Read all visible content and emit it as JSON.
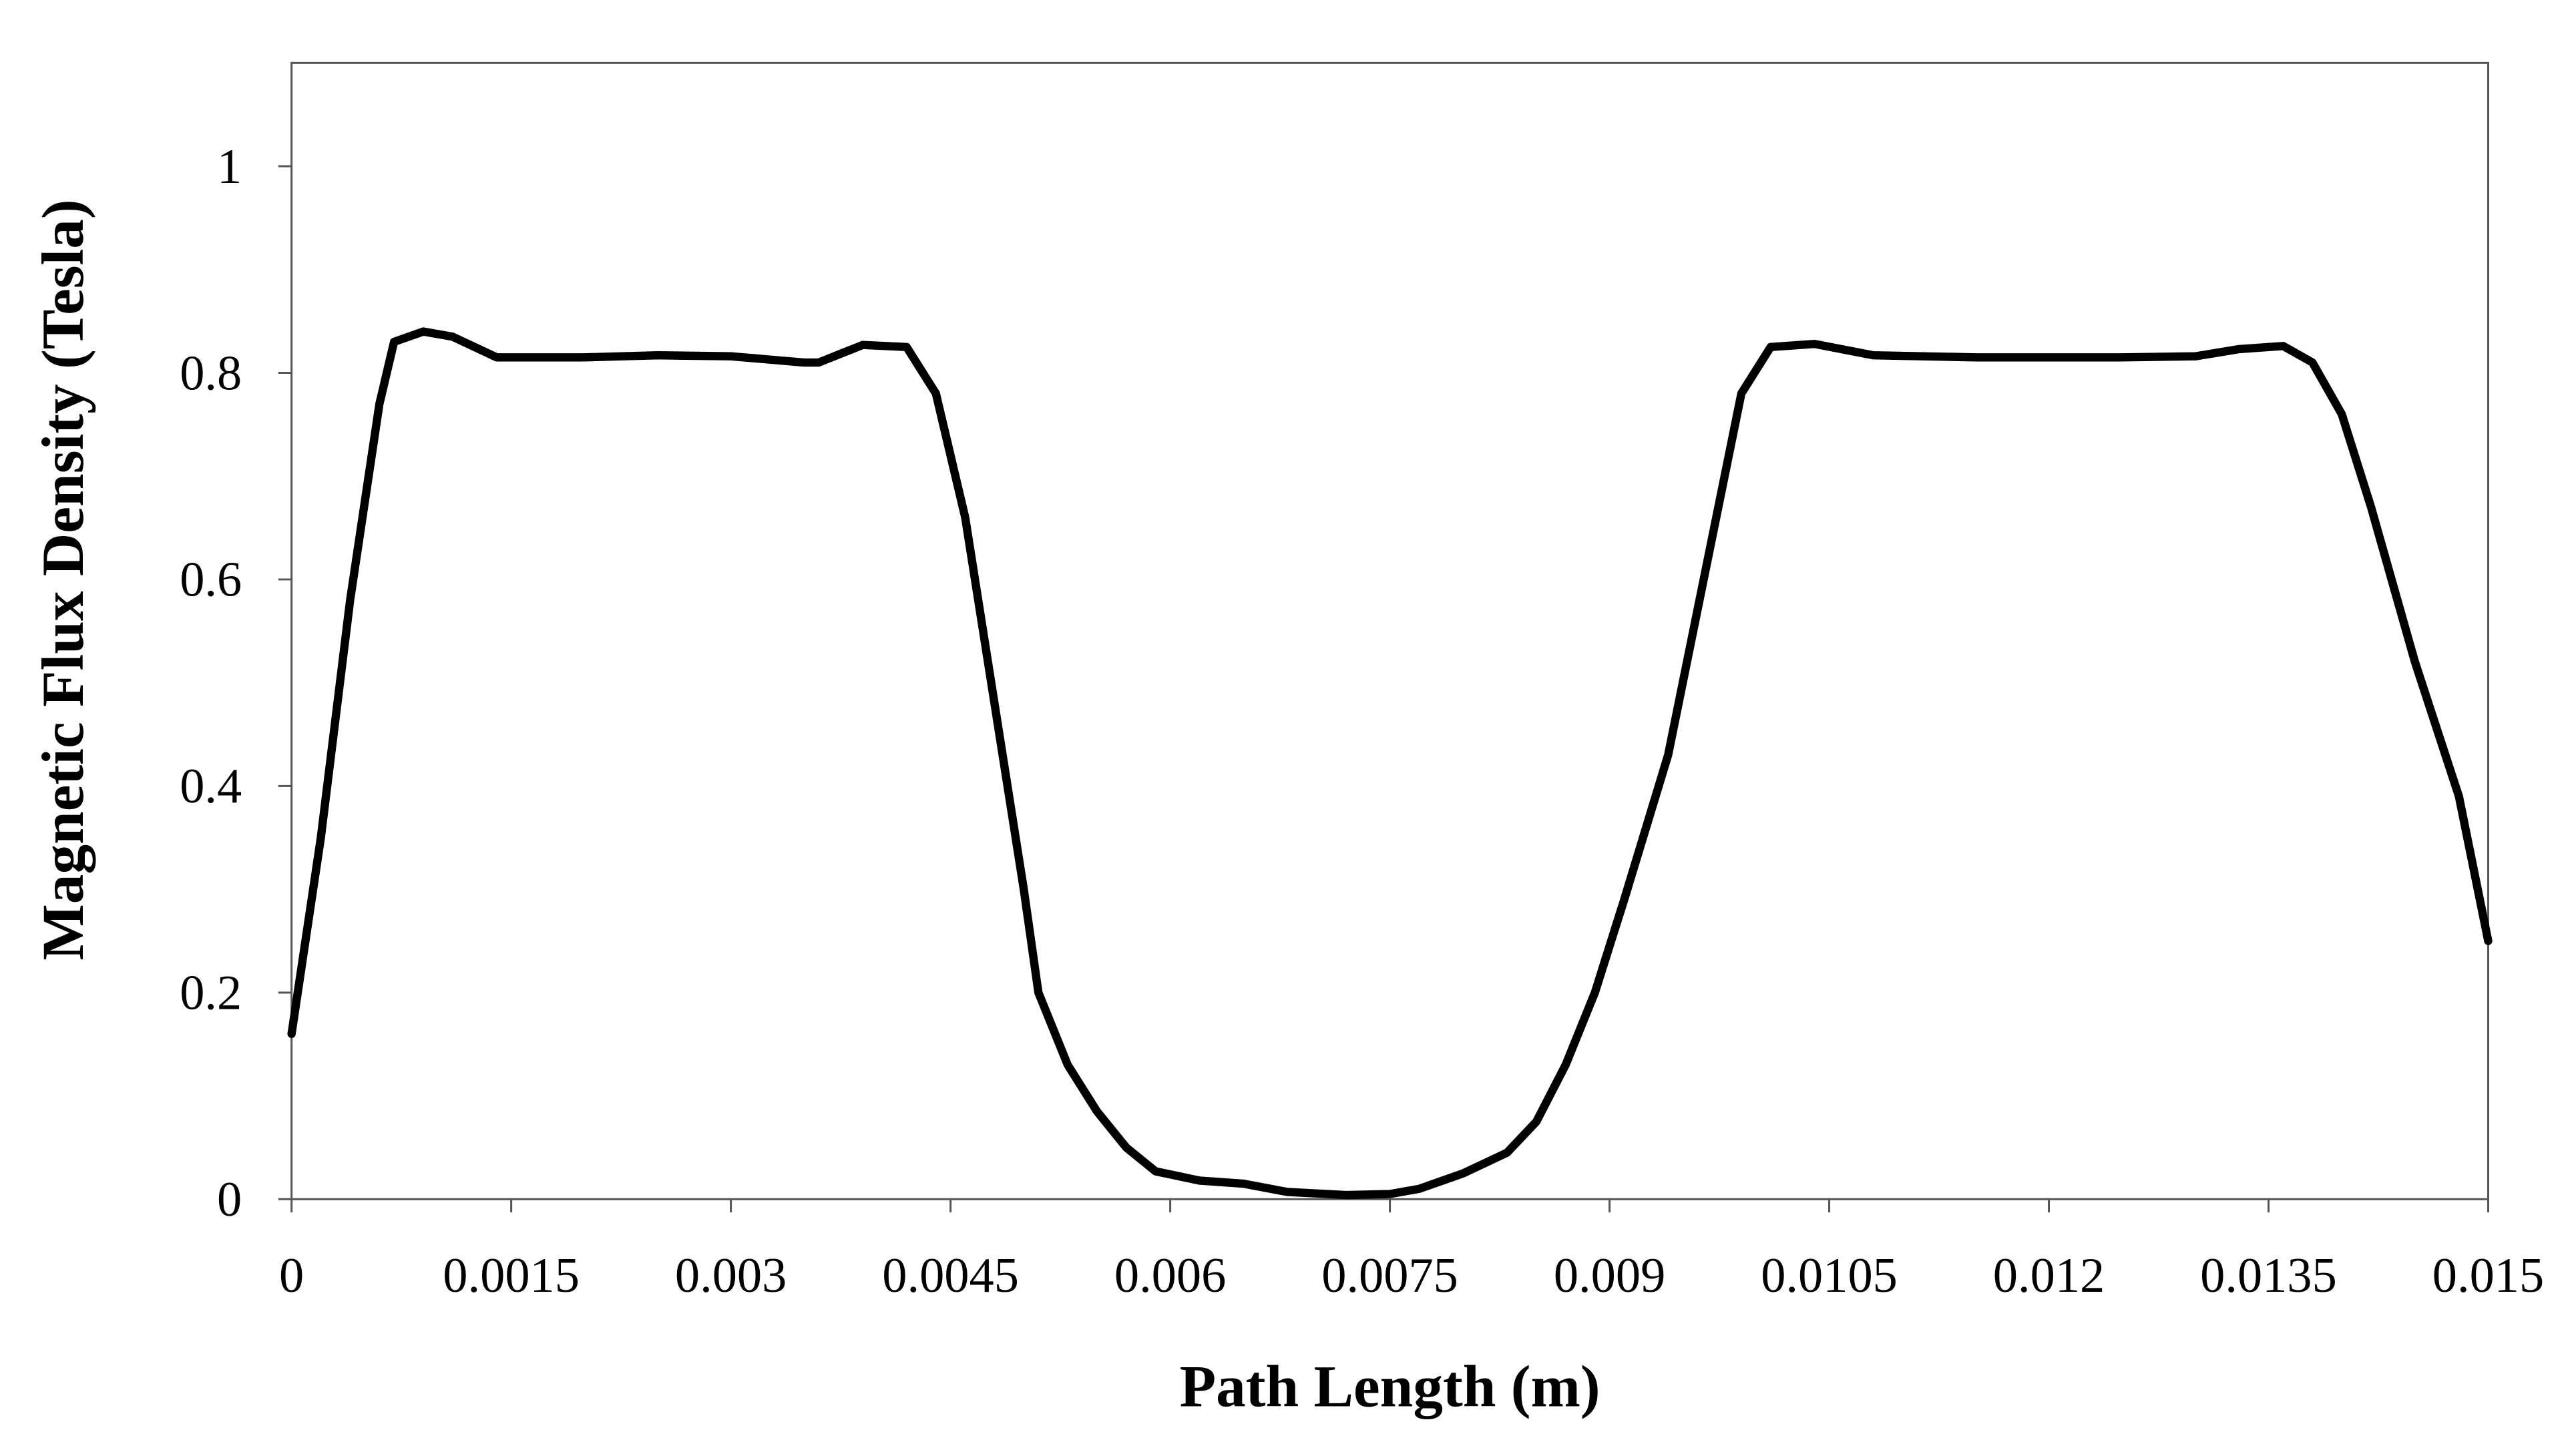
{
  "chart_data": {
    "type": "line",
    "x_label": "Path Length (m)",
    "y_label": "Magnetic Flux Density (Tesla)",
    "xlim": [
      0,
      0.015
    ],
    "xticks": [
      0,
      0.0015,
      0.003,
      0.0045,
      0.006,
      0.0075,
      0.009,
      0.0105,
      0.012,
      0.0135,
      0.015
    ],
    "ylim": [
      0,
      1.1
    ],
    "yticks": [
      0,
      0.2,
      0.4,
      0.6,
      0.8,
      1
    ],
    "grid": false,
    "series": [
      {
        "color": "#000000",
        "x": [
          0,
          0.0002,
          0.0004,
          0.0006,
          0.0007,
          0.0009,
          0.0011,
          0.0014,
          0.002,
          0.0025,
          0.003,
          0.0035,
          0.0036,
          0.0039,
          0.0042,
          0.0044,
          0.0046,
          0.0048,
          0.005,
          0.0051,
          0.0053,
          0.0055,
          0.0057,
          0.0059,
          0.0062,
          0.0065,
          0.0068,
          0.0072,
          0.0075,
          0.0077,
          0.008,
          0.0083,
          0.0085,
          0.0087,
          0.0089,
          0.0091,
          0.0094,
          0.0097,
          0.0099,
          0.0101,
          0.0104,
          0.0108,
          0.0115,
          0.0125,
          0.013,
          0.0133,
          0.0136,
          0.0138,
          0.014,
          0.0142,
          0.0145,
          0.0148,
          0.015
        ],
        "values": [
          0.16,
          0.35,
          0.58,
          0.77,
          0.83,
          0.84,
          0.835,
          0.815,
          0.815,
          0.817,
          0.816,
          0.81,
          0.81,
          0.827,
          0.825,
          0.78,
          0.66,
          0.48,
          0.3,
          0.2,
          0.13,
          0.085,
          0.05,
          0.027,
          0.018,
          0.015,
          0.007,
          0.004,
          0.005,
          0.01,
          0.025,
          0.045,
          0.075,
          0.13,
          0.2,
          0.29,
          0.43,
          0.64,
          0.78,
          0.825,
          0.828,
          0.817,
          0.815,
          0.815,
          0.816,
          0.823,
          0.826,
          0.81,
          0.76,
          0.67,
          0.52,
          0.39,
          0.25
        ]
      }
    ]
  }
}
